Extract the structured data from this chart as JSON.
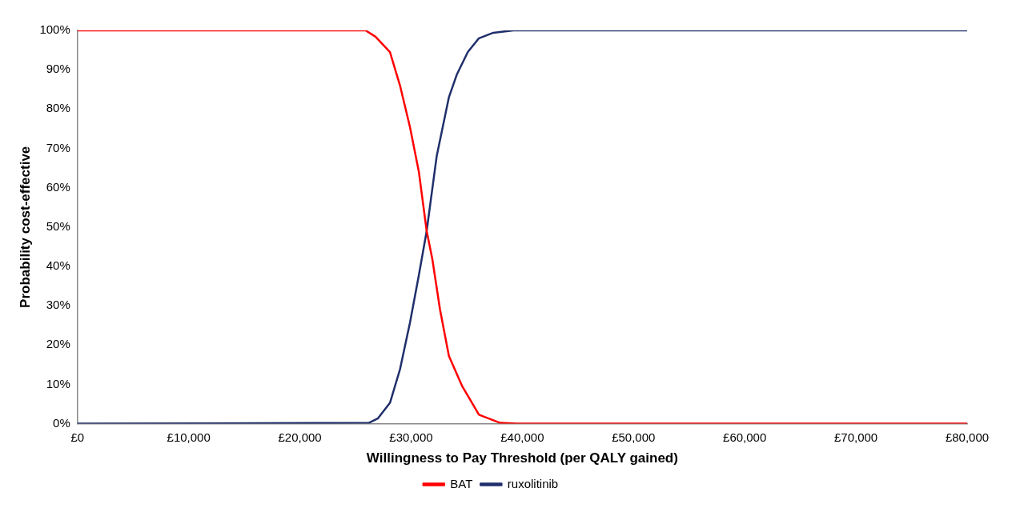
{
  "chart_data": {
    "type": "line",
    "xlabel": "Willingness to Pay Threshold (per QALY gained)",
    "ylabel": "Probability cost-effective",
    "xlim": [
      0,
      80000
    ],
    "xticks": [
      {
        "value": 0,
        "label": "£0"
      },
      {
        "value": 10000,
        "label": "£10,000"
      },
      {
        "value": 20000,
        "label": "£20,000"
      },
      {
        "value": 30000,
        "label": "£30,000"
      },
      {
        "value": 40000,
        "label": "£40,000"
      },
      {
        "value": 50000,
        "label": "£50,000"
      },
      {
        "value": 60000,
        "label": "£60,000"
      },
      {
        "value": 70000,
        "label": "£70,000"
      },
      {
        "value": 80000,
        "label": "£80,000"
      }
    ],
    "ylim": [
      0,
      100
    ],
    "yticks": [
      {
        "value": 0,
        "label": "0%"
      },
      {
        "value": 10,
        "label": "10%"
      },
      {
        "value": 20,
        "label": "20%"
      },
      {
        "value": 30,
        "label": "30%"
      },
      {
        "value": 40,
        "label": "40%"
      },
      {
        "value": 50,
        "label": "50%"
      },
      {
        "value": 60,
        "label": "60%"
      },
      {
        "value": 70,
        "label": "70%"
      },
      {
        "value": 80,
        "label": "80%"
      },
      {
        "value": 90,
        "label": "90%"
      },
      {
        "value": 100,
        "label": "100%"
      }
    ],
    "grid": false,
    "legend": "bottom",
    "marker": "none",
    "line_style": "solid",
    "series": [
      {
        "name": "BAT",
        "color": "#ff0000",
        "x": [
          0,
          25900,
          26800,
          28100,
          29000,
          29900,
          30700,
          31400,
          31900,
          32600,
          33400,
          34600,
          36100,
          38000,
          39500,
          80000
        ],
        "values": [
          100,
          100,
          98.4,
          94.5,
          86,
          75.4,
          64,
          49,
          42,
          29,
          17.2,
          9.5,
          2.3,
          0.2,
          0,
          0
        ]
      },
      {
        "name": "ruxolitinib",
        "color": "#1f2f6b",
        "x": [
          0,
          26200,
          27000,
          28100,
          29000,
          29900,
          30700,
          31400,
          32300,
          33400,
          34100,
          35100,
          36100,
          37400,
          39200,
          80000
        ],
        "values": [
          0,
          0.2,
          1.3,
          5.3,
          13.8,
          25.7,
          37.8,
          49,
          68,
          83,
          88.7,
          94.5,
          98,
          99.4,
          100,
          100
        ]
      }
    ]
  }
}
